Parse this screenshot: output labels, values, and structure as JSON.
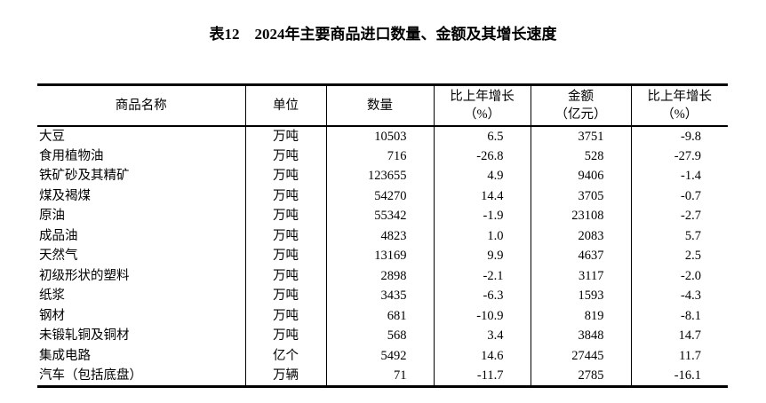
{
  "title": "表12　2024年主要商品进口数量、金额及其增长速度",
  "headers": [
    "商品名称",
    "单位",
    "数量",
    "比上年增长\n（%）",
    "金额\n（亿元）",
    "比上年增长\n（%）"
  ],
  "rows": [
    [
      "大豆",
      "万吨",
      "10503",
      "6.5",
      "3751",
      "-9.8"
    ],
    [
      "食用植物油",
      "万吨",
      "716",
      "-26.8",
      "528",
      "-27.9"
    ],
    [
      "铁矿砂及其精矿",
      "万吨",
      "123655",
      "4.9",
      "9406",
      "-1.4"
    ],
    [
      "煤及褐煤",
      "万吨",
      "54270",
      "14.4",
      "3705",
      "-0.7"
    ],
    [
      "原油",
      "万吨",
      "55342",
      "-1.9",
      "23108",
      "-2.7"
    ],
    [
      "成品油",
      "万吨",
      "4823",
      "1.0",
      "2083",
      "5.7"
    ],
    [
      "天然气",
      "万吨",
      "13169",
      "9.9",
      "4637",
      "2.5"
    ],
    [
      "初级形状的塑料",
      "万吨",
      "2898",
      "-2.1",
      "3117",
      "-2.0"
    ],
    [
      "纸浆",
      "万吨",
      "3435",
      "-6.3",
      "1593",
      "-4.3"
    ],
    [
      "钢材",
      "万吨",
      "681",
      "-10.9",
      "819",
      "-8.1"
    ],
    [
      "未锻轧铜及铜材",
      "万吨",
      "568",
      "3.4",
      "3848",
      "14.7"
    ],
    [
      "集成电路",
      "亿个",
      "5492",
      "14.6",
      "27445",
      "11.7"
    ],
    [
      "汽车（包括底盘）",
      "万辆",
      "71",
      "-11.7",
      "2785",
      "-16.1"
    ]
  ]
}
